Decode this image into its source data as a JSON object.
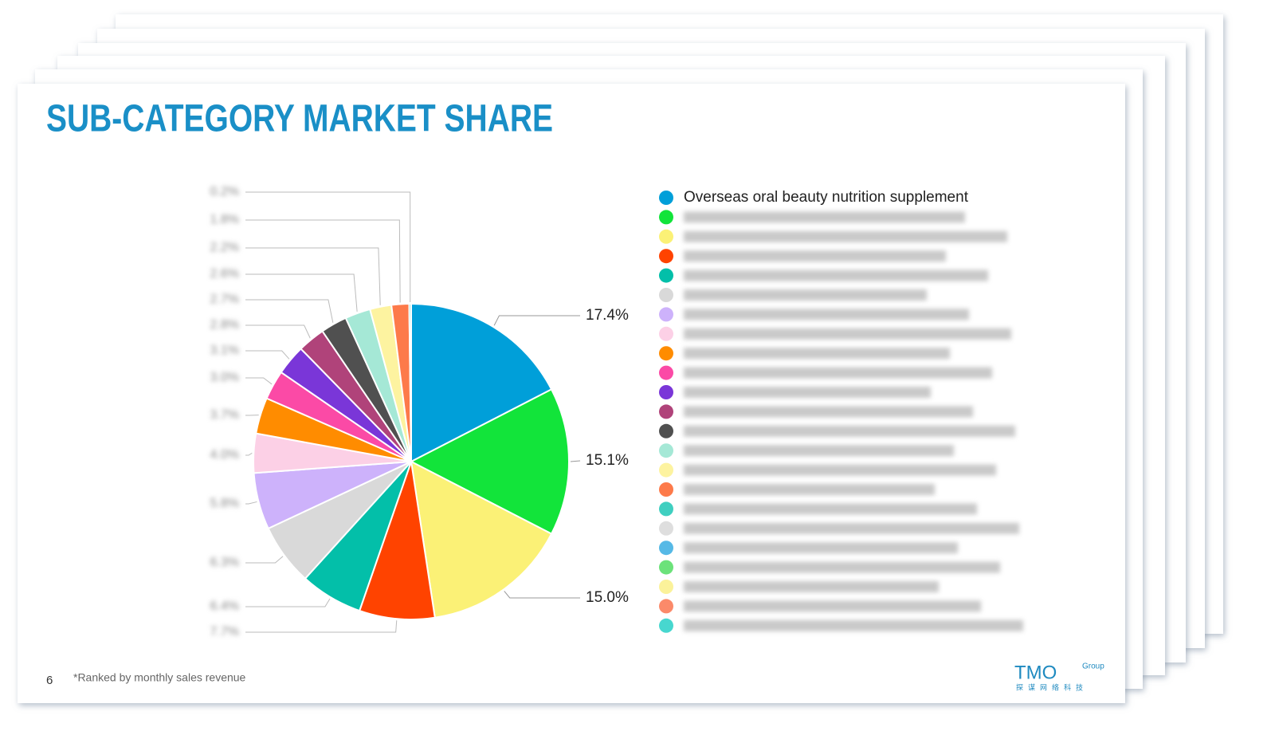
{
  "title": "SUB-CATEGORY MARKET SHARE",
  "page_number": "6",
  "footnote": "*Ranked by monthly sales revenue",
  "logo": "TMO",
  "logo_sub": "Group",
  "logo_cn": "探谋网络科技",
  "chart_data": {
    "type": "pie",
    "categories": [
      "Overseas oral beauty nutrition supplement",
      null,
      null,
      null,
      null,
      null,
      null,
      null,
      null,
      null,
      null,
      null,
      null,
      null,
      null,
      null,
      null,
      null,
      null,
      null,
      null,
      null,
      null
    ],
    "values": [
      17.4,
      15.1,
      15.0,
      7.7,
      6.4,
      6.3,
      5.8,
      4.0,
      3.7,
      3.0,
      3.1,
      2.8,
      2.7,
      2.6,
      2.2,
      1.8,
      0.2,
      null,
      null,
      null,
      null,
      null,
      null
    ],
    "value_labels": [
      "17.4%",
      "15.1%",
      "15.0%",
      "7.7%",
      "6.4%",
      "6.3%",
      "5.8%",
      "4.0%",
      "3.7%",
      "3.0%",
      "3.1%",
      "2.8%",
      "2.7%",
      "2.6%",
      "2.2%",
      "1.8%",
      "0.2%",
      null,
      null,
      null,
      null,
      null,
      null
    ],
    "colors": [
      "#009fd9",
      "#12e43a",
      "#fbf176",
      "#ff4300",
      "#03bfa9",
      "#d9d9d9",
      "#cdb2fb",
      "#fcd0e6",
      "#ff8c00",
      "#fb4aa6",
      "#7a36d8",
      "#b0437a",
      "#505050",
      "#a5e8d6",
      "#fdf3a0",
      "#fd7a4a",
      "#3fcfc0",
      "#dedede",
      "#56b9e6",
      "#6ce27a",
      "#fbf29a",
      "#fb8a6a",
      "#47d7cf"
    ]
  }
}
